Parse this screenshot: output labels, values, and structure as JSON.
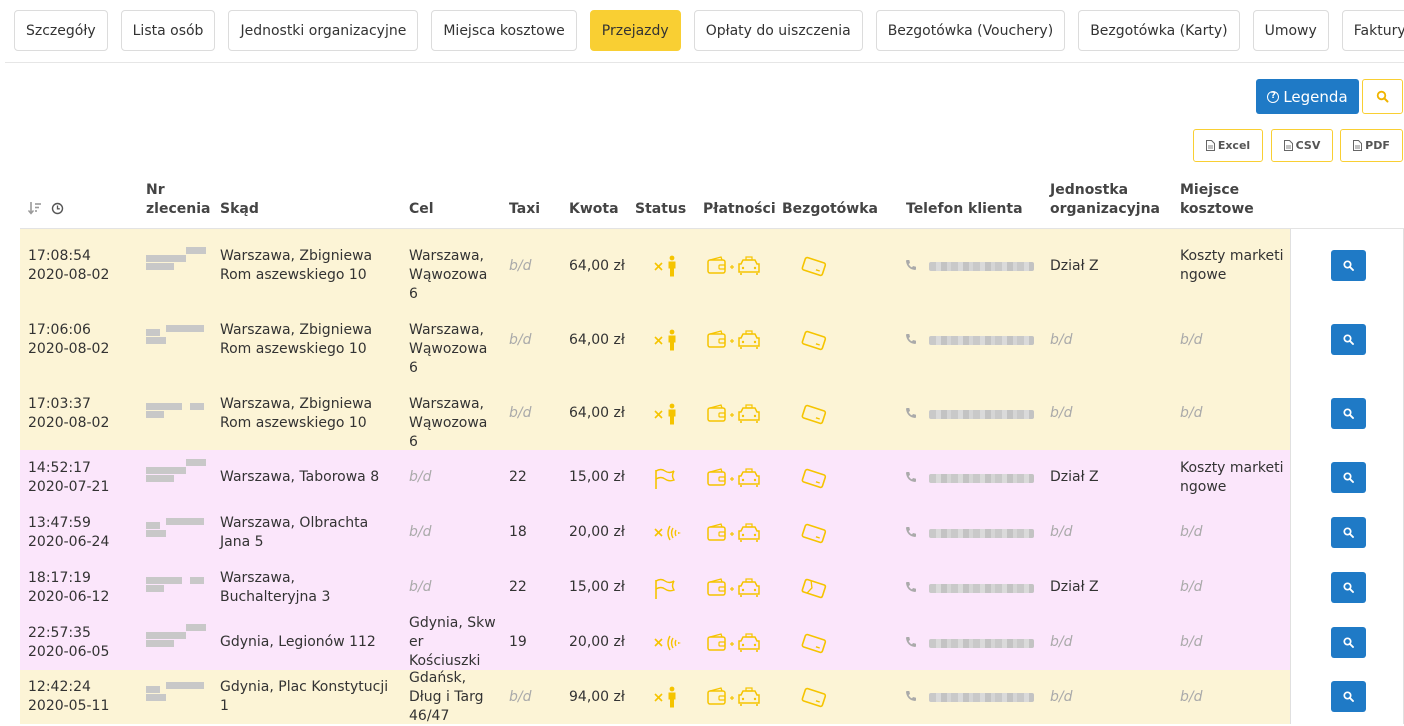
{
  "tabs": [
    {
      "label": "Szczegóły",
      "active": false
    },
    {
      "label": "Lista osób",
      "active": false
    },
    {
      "label": "Jednostki organizacyjne",
      "active": false
    },
    {
      "label": "Miejsca kosztowe",
      "active": false
    },
    {
      "label": "Przejazdy",
      "active": true
    },
    {
      "label": "Opłaty do uiszczenia",
      "active": false
    },
    {
      "label": "Bezgotówka (Vouchery)",
      "active": false
    },
    {
      "label": "Bezgotówka (Karty)",
      "active": false
    },
    {
      "label": "Umowy",
      "active": false
    },
    {
      "label": "Faktury",
      "active": false
    }
  ],
  "toolbar": {
    "legend_label": "Legenda",
    "excel_label": "Excel",
    "csv_label": "CSV",
    "pdf_label": "PDF"
  },
  "table": {
    "headers": {
      "nr_line1": "Nr",
      "nr_line2": "zlecenia",
      "skad": "Skąd",
      "cel": "Cel",
      "taxi": "Taxi",
      "kwota": "Kwota",
      "status": "Status",
      "platnosci": "Płatności",
      "bezgotowka": "Bezgotówka",
      "telefon": "Telefon klienta",
      "jednostka_line1": "Jednostka",
      "jednostka_line2": "organizacyjna",
      "miejsce_line1": "Miejsce",
      "miejsce_line2": "kosztowe"
    },
    "rows": [
      {
        "time": "17:08:54",
        "date": "2020-08-02",
        "skad": "Warszawa, Zbigniewa Rom aszewskiego 10",
        "cel": "Warszawa, Wąwozowa 6",
        "taxi": "b/d",
        "kwota": "64,00 zł",
        "status": "cancelled-passenger",
        "bezgotowka": "card",
        "jednostka": "Dział Z",
        "miejsce": "Koszty marketi ngowe",
        "color": "yellow"
      },
      {
        "time": "17:06:06",
        "date": "2020-08-02",
        "skad": "Warszawa, Zbigniewa Rom aszewskiego 10",
        "cel": "Warszawa, Wąwozowa 6",
        "taxi": "b/d",
        "kwota": "64,00 zł",
        "status": "cancelled-passenger",
        "bezgotowka": "card",
        "jednostka": "b/d",
        "miejsce": "b/d",
        "color": "yellow"
      },
      {
        "time": "17:03:37",
        "date": "2020-08-02",
        "skad": "Warszawa, Zbigniewa Rom aszewskiego 10",
        "cel": "Warszawa, Wąwozowa 6",
        "taxi": "b/d",
        "kwota": "64,00 zł",
        "status": "cancelled-passenger",
        "bezgotowka": "card",
        "jednostka": "b/d",
        "miejsce": "b/d",
        "color": "yellow"
      },
      {
        "time": "14:52:17",
        "date": "2020-07-21",
        "skad": "Warszawa, Taborowa 8",
        "cel": "b/d",
        "taxi": "22",
        "kwota": "15,00 zł",
        "status": "finished-flag",
        "bezgotowka": "card",
        "jednostka": "Dział Z",
        "miejsce": "Koszty marketi ngowe",
        "color": "pink"
      },
      {
        "time": "13:47:59",
        "date": "2020-06-24",
        "skad": "Warszawa, Olbrachta Jana 5",
        "cel": "b/d",
        "taxi": "18",
        "kwota": "20,00 zł",
        "status": "cancelled-signal",
        "bezgotowka": "card",
        "jednostka": "b/d",
        "miejsce": "b/d",
        "color": "pink"
      },
      {
        "time": "18:17:19",
        "date": "2020-06-12",
        "skad": "Warszawa, Buchalteryjna 3",
        "cel": "b/d",
        "taxi": "22",
        "kwota": "15,00 zł",
        "status": "finished-flag",
        "bezgotowka": "card-broken",
        "jednostka": "Dział Z",
        "miejsce": "b/d",
        "color": "pink"
      },
      {
        "time": "22:57:35",
        "date": "2020-06-05",
        "skad": "Gdynia, Legionów 112",
        "cel": "Gdynia, Skw er Kościuszki",
        "taxi": "19",
        "kwota": "20,00 zł",
        "status": "cancelled-signal",
        "bezgotowka": "card",
        "jednostka": "b/d",
        "miejsce": "b/d",
        "color": "pink"
      },
      {
        "time": "12:42:24",
        "date": "2020-05-11",
        "skad": "Gdynia, Plac Konstytucji 1",
        "cel": "Gdańsk, Dług i Targ 46/47",
        "taxi": "b/d",
        "kwota": "94,00 zł",
        "status": "cancelled-passenger",
        "bezgotowka": "card",
        "jednostka": "b/d",
        "miejsce": "b/d",
        "color": "yellow"
      }
    ]
  },
  "colors": {
    "accent_yellow": "#f9cf33",
    "accent_blue": "#1f7ac6",
    "row_yellow": "#fcf4d6",
    "row_pink": "#fbe6fb"
  }
}
